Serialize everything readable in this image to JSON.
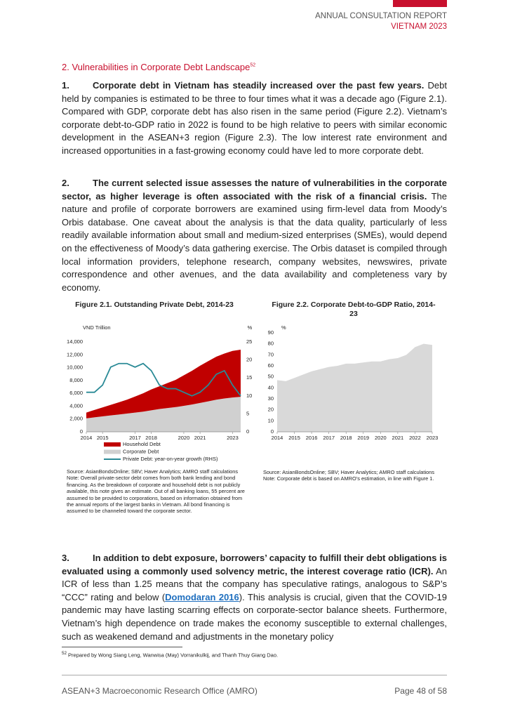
{
  "header": {
    "title": "ANNUAL CONSULTATION REPORT",
    "subtitle": "VIETNAM 2023"
  },
  "section_title": {
    "text": "2. Vulnerabilities in Corporate Debt Landscape",
    "footnote_ref": "52"
  },
  "paragraphs": [
    {
      "number": "1.",
      "lead": "Corporate debt in Vietnam has steadily increased over the past few years.",
      "text": "Debt held by companies is estimated to be three to four times what it was a decade ago (Figure 2.1). Compared with GDP, corporate debt has also risen in the same period (Figure 2.2). Vietnam’s corporate debt-to-GDP ratio in 2022 is found to be high relative to peers with similar economic development in the ASEAN+3 region (Figure 2.3). The low interest rate environment and increased opportunities in a fast-growing economy could have led to more corporate debt."
    },
    {
      "number": "2.",
      "lead": "The current selected issue assesses the nature of vulnerabilities in the corporate sector, as higher leverage is often associated with the risk of a financial crisis.",
      "text": "The nature and profile of corporate borrowers are examined using firm-level data from Moody’s Orbis database. One caveat about the analysis is that the data quality, particularly of less readily available information about small and medium-sized enterprises (SMEs), would depend on the effectiveness of Moody’s data gathering exercise. The Orbis dataset is compiled through local information providers, telephone research, company websites, newswires, private correspondence and other avenues, and the data availability and completeness vary by economy."
    },
    {
      "number": "3.",
      "lead": "In addition to debt exposure, borrowers’ capacity to fulfill their debt obligations is evaluated using a commonly used solvency metric, the interest coverage ratio (ICR).",
      "text_before": "An ICR of less than 1.25 means that the company has speculative ratings, analogous to S&P’s “CCC” rating and below (",
      "link": "Domodaran 2016",
      "text_after": "). This analysis is crucial, given that the COVID-19 pandemic may have lasting scarring effects on corporate-sector balance sheets. Furthermore, Vietnam’s high dependence on trade makes the economy susceptible to external challenges, such as weakened demand and adjustments in the monetary policy"
    }
  ],
  "chart_data": [
    {
      "type": "area",
      "stacked": true,
      "title": "Figure 2.1. Outstanding Private Debt, 2014-23",
      "y_label": "VND Trillion",
      "y2_label": "%",
      "x": [
        2014,
        2014.5,
        2015,
        2015.5,
        2016,
        2016.5,
        2017,
        2017.5,
        2018,
        2018.5,
        2019,
        2019.5,
        2020,
        2020.5,
        2021,
        2021.5,
        2022,
        2022.5,
        2023,
        2023.5
      ],
      "xlim": [
        2014,
        2023.5
      ],
      "xticks": [
        2014,
        2015,
        2017,
        2018,
        2020,
        2021,
        2023
      ],
      "ylim": [
        0,
        14000
      ],
      "yticks": [
        0,
        {
          "value": 2000,
          "label": "2,000"
        },
        {
          "value": 4000,
          "label": "4,000"
        },
        {
          "value": 6000,
          "label": "6,000"
        },
        {
          "value": 8000,
          "label": "8,000"
        },
        {
          "value": 10000,
          "label": "10,000"
        },
        {
          "value": 12000,
          "label": "12,000"
        },
        {
          "value": 14000,
          "label": "14,000"
        }
      ],
      "y2lim": [
        0,
        25
      ],
      "y2ticks": [
        0,
        5,
        10,
        15,
        20,
        25
      ],
      "series": [
        {
          "name": "Corporate Debt",
          "type": "area",
          "color": "#d0d0d0",
          "values": [
            2100,
            2250,
            2400,
            2550,
            2700,
            2850,
            3000,
            3150,
            3350,
            3550,
            3700,
            3850,
            4050,
            4250,
            4500,
            4750,
            5000,
            5200,
            5350,
            5450
          ]
        },
        {
          "name": "Household Debt",
          "type": "area",
          "color": "#c00000",
          "values": [
            900,
            1150,
            1400,
            1650,
            1900,
            2150,
            2500,
            2850,
            3250,
            3550,
            3900,
            4250,
            4750,
            5250,
            5800,
            6250,
            6700,
            7000,
            7250,
            7350
          ]
        },
        {
          "name": "Private Debt: year-on-year growth (RHS)",
          "type": "line",
          "axis": "y2",
          "color": "#2a8a96",
          "values": [
            11,
            11,
            13,
            18,
            19,
            19,
            18,
            19,
            17,
            13,
            12,
            12,
            11,
            10,
            11,
            13,
            16,
            17,
            13,
            10
          ]
        }
      ],
      "legend_order": [
        1,
        0,
        2
      ],
      "source": "Source: AsianBondsOnline; SBV; Haver Analytics; AMRO staff calculations",
      "note": "Note: Overall private-sector debt comes from both bank lending and bond financing. As the breakdown of corporate and household debt is not publicly available, this note gives an estimate. Out of all banking loans, 55 percent are assumed to be provided to corporations, based on information obtained from the annual reports of the largest banks in Vietnam. All bond financing is assumed to be channeled toward the corporate sector."
    },
    {
      "type": "area",
      "title": "Figure 2.2. Corporate Debt-to-GDP Ratio, 2014-23",
      "y_label": "%",
      "x": [
        2014,
        2014.5,
        2015,
        2015.5,
        2016,
        2016.5,
        2017,
        2017.5,
        2018,
        2018.5,
        2019,
        2019.5,
        2020,
        2020.5,
        2021,
        2021.5,
        2022,
        2022.5,
        2023
      ],
      "xlim": [
        2014,
        2023
      ],
      "xticks": [
        2014,
        2015,
        2016,
        2017,
        2018,
        2019,
        2020,
        2021,
        2022,
        2023
      ],
      "ylim": [
        0,
        90
      ],
      "yticks": [
        0,
        10,
        20,
        30,
        40,
        50,
        60,
        70,
        80,
        90
      ],
      "series": [
        {
          "type": "area",
          "color": "#d9d9d9",
          "values": [
            47,
            46,
            49,
            52,
            55,
            57,
            59,
            60,
            62,
            62,
            63,
            64,
            64,
            66,
            67,
            70,
            77,
            80,
            79
          ]
        }
      ],
      "source": "Source: AsianBondsOnline; SBV; Haver Analytics; AMRO staff calculations",
      "note": "Note: Corporate debt is based on AMRO’s estimation, in line with Figure 1."
    }
  ],
  "footnote": {
    "number": "52",
    "text": "Prepared by Wong Siang Leng, Wanwisa (May) Vorranikulkij, and Thanh Thuy Giang Dao."
  },
  "footer": {
    "left": "ASEAN+3 Macroeconomic Research Office (AMRO)",
    "right": "Page 48 of 58"
  }
}
